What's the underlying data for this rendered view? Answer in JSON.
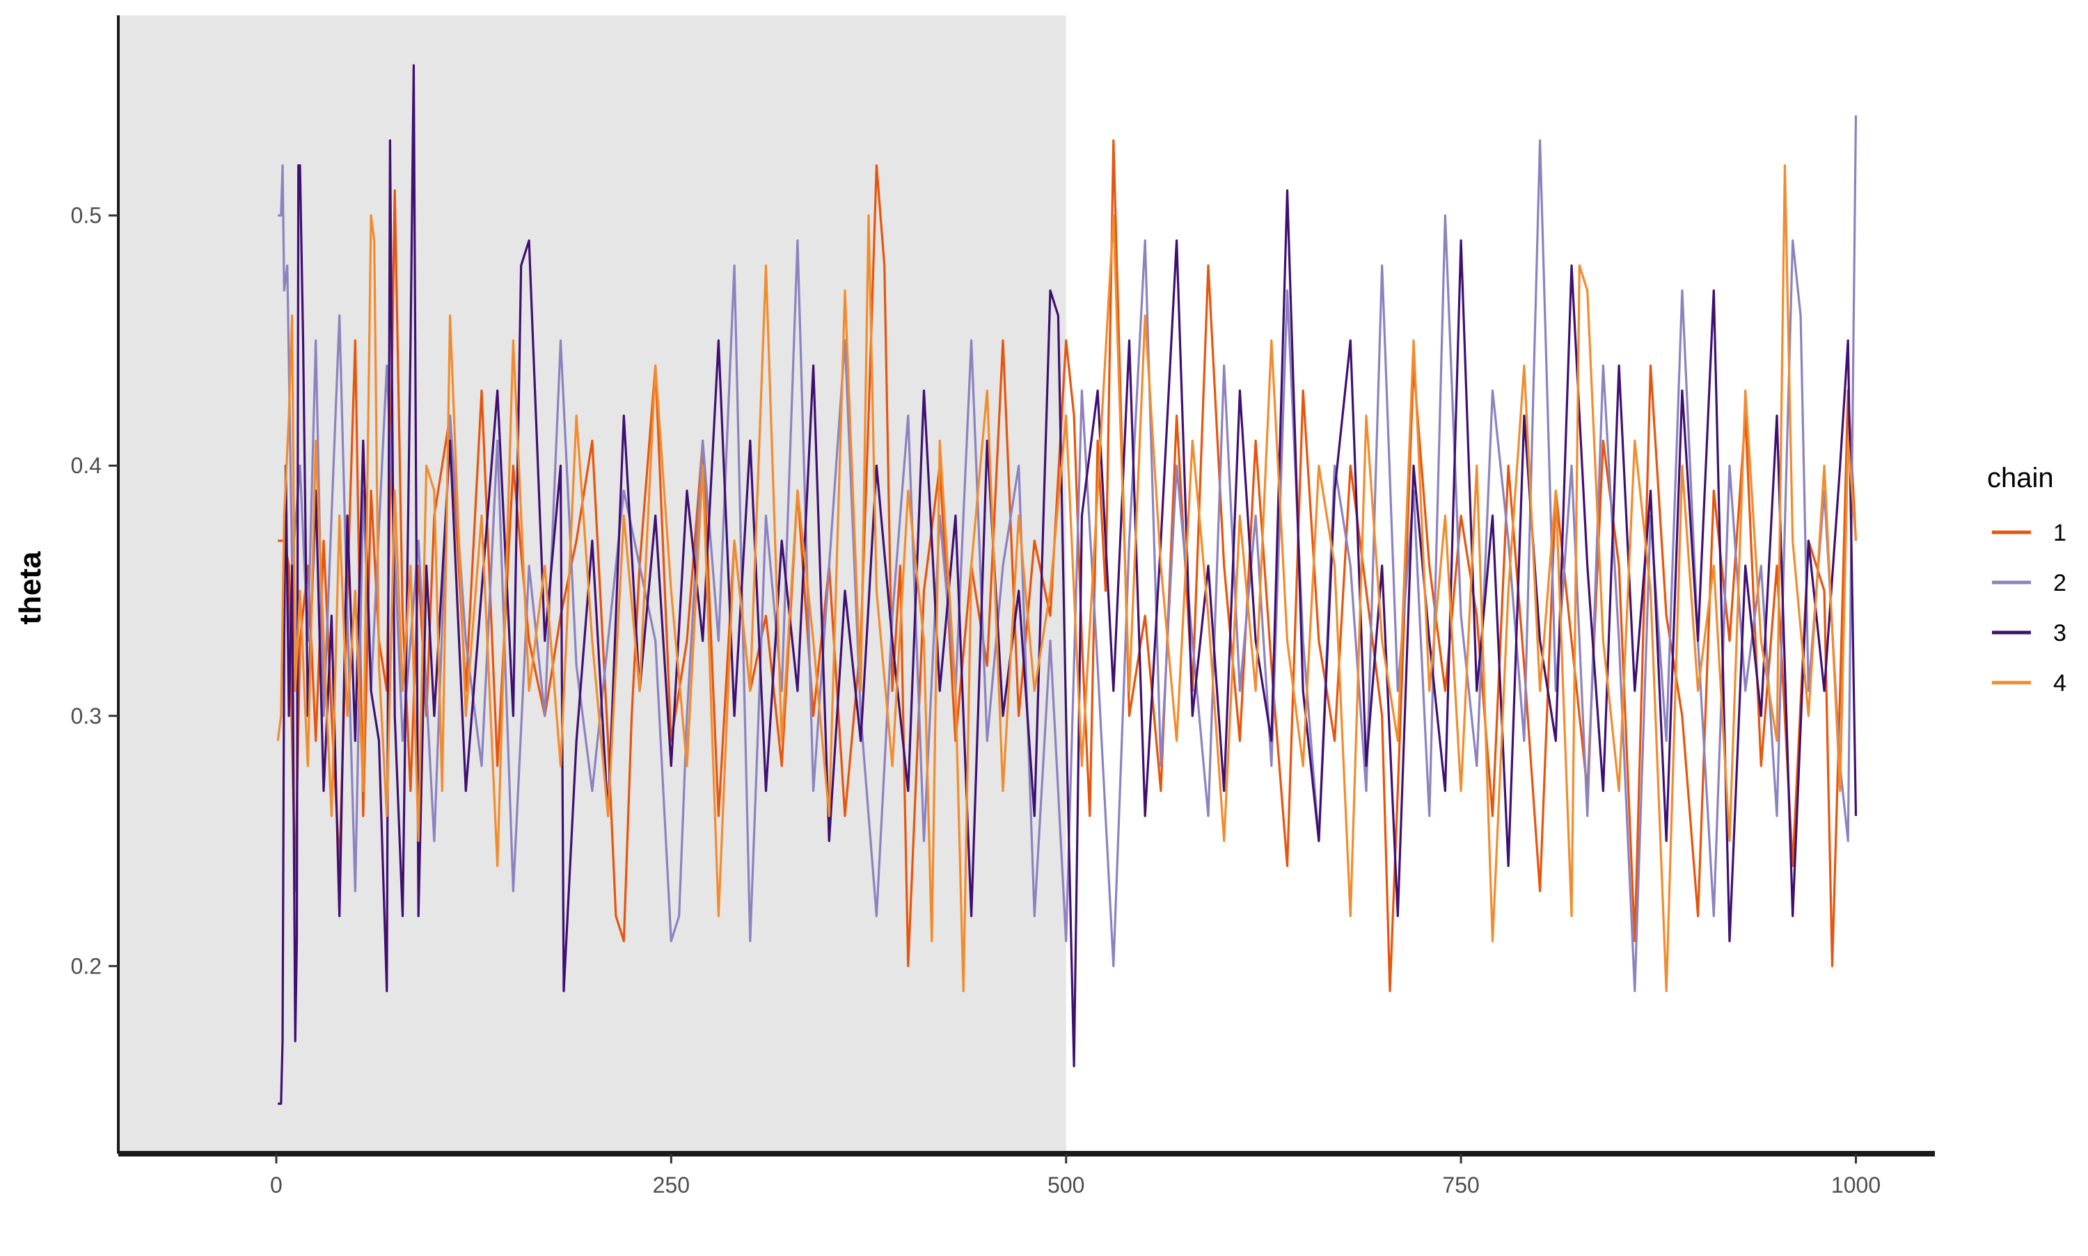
{
  "chart_data": {
    "type": "line",
    "title": "",
    "xlabel": "",
    "ylabel": "theta",
    "xlim": [
      -100,
      1050
    ],
    "ylim": [
      0.125,
      0.58
    ],
    "x_ticks": [
      0,
      250,
      500,
      750,
      1000
    ],
    "x_tick_labels": [
      "0",
      "250",
      "500",
      "750",
      "1000"
    ],
    "y_ticks": [
      0.2,
      0.3,
      0.4,
      0.5
    ],
    "y_tick_labels": [
      "0.2",
      "0.3",
      "0.4",
      "0.5"
    ],
    "warmup_region": {
      "x_start": -100,
      "x_end": 500,
      "fill": "#e6e6e6"
    },
    "grid": false,
    "legend": {
      "title": "chain",
      "position": "right"
    },
    "series": [
      {
        "name": "1",
        "color": "#e6550d",
        "x": [
          1,
          5,
          8,
          10,
          12,
          15,
          20,
          25,
          30,
          35,
          40,
          45,
          50,
          55,
          60,
          65,
          70,
          75,
          80,
          85,
          90,
          95,
          100,
          110,
          120,
          130,
          140,
          150,
          160,
          170,
          180,
          190,
          200,
          210,
          215,
          220,
          225,
          230,
          240,
          250,
          260,
          270,
          280,
          290,
          300,
          310,
          320,
          330,
          340,
          350,
          360,
          370,
          375,
          380,
          385,
          390,
          395,
          400,
          410,
          420,
          430,
          440,
          450,
          460,
          470,
          480,
          490,
          500,
          505,
          510,
          515,
          520,
          525,
          530,
          540,
          550,
          560,
          570,
          580,
          590,
          600,
          610,
          620,
          630,
          640,
          650,
          660,
          670,
          680,
          690,
          700,
          705,
          710,
          720,
          730,
          740,
          750,
          760,
          770,
          780,
          790,
          800,
          810,
          820,
          830,
          840,
          850,
          860,
          870,
          880,
          890,
          900,
          910,
          920,
          930,
          940,
          950,
          960,
          970,
          980,
          985,
          990,
          995,
          1000
        ],
        "values": [
          0.37,
          0.37,
          0.36,
          0.29,
          0.23,
          0.33,
          0.36,
          0.29,
          0.37,
          0.3,
          0.24,
          0.35,
          0.45,
          0.26,
          0.39,
          0.33,
          0.31,
          0.51,
          0.34,
          0.27,
          0.36,
          0.3,
          0.38,
          0.42,
          0.31,
          0.43,
          0.28,
          0.4,
          0.33,
          0.3,
          0.34,
          0.37,
          0.41,
          0.29,
          0.22,
          0.21,
          0.3,
          0.36,
          0.44,
          0.29,
          0.33,
          0.41,
          0.26,
          0.37,
          0.31,
          0.34,
          0.28,
          0.39,
          0.3,
          0.36,
          0.26,
          0.33,
          0.42,
          0.52,
          0.48,
          0.31,
          0.36,
          0.2,
          0.35,
          0.4,
          0.29,
          0.36,
          0.32,
          0.45,
          0.3,
          0.37,
          0.34,
          0.45,
          0.42,
          0.33,
          0.26,
          0.41,
          0.35,
          0.53,
          0.3,
          0.34,
          0.27,
          0.42,
          0.31,
          0.48,
          0.36,
          0.29,
          0.41,
          0.32,
          0.24,
          0.43,
          0.33,
          0.29,
          0.4,
          0.35,
          0.3,
          0.19,
          0.27,
          0.44,
          0.36,
          0.31,
          0.38,
          0.34,
          0.26,
          0.4,
          0.32,
          0.23,
          0.39,
          0.33,
          0.27,
          0.41,
          0.36,
          0.21,
          0.44,
          0.34,
          0.3,
          0.22,
          0.39,
          0.33,
          0.42,
          0.28,
          0.36,
          0.24,
          0.37,
          0.35,
          0.2,
          0.31,
          0.43,
          0.37
        ]
      },
      {
        "name": "2",
        "color": "#8c82c0",
        "x": [
          1,
          3,
          4,
          5,
          7,
          10,
          15,
          20,
          25,
          30,
          35,
          40,
          45,
          50,
          55,
          60,
          70,
          80,
          90,
          100,
          110,
          120,
          130,
          140,
          150,
          160,
          170,
          180,
          190,
          200,
          220,
          240,
          250,
          255,
          260,
          270,
          280,
          290,
          300,
          310,
          320,
          330,
          340,
          350,
          360,
          370,
          380,
          390,
          400,
          410,
          420,
          430,
          440,
          450,
          460,
          470,
          480,
          490,
          500,
          510,
          520,
          530,
          540,
          550,
          560,
          570,
          580,
          590,
          600,
          610,
          620,
          630,
          640,
          650,
          660,
          670,
          680,
          690,
          700,
          710,
          720,
          730,
          740,
          750,
          760,
          770,
          780,
          790,
          800,
          810,
          820,
          830,
          840,
          850,
          860,
          870,
          880,
          890,
          900,
          910,
          920,
          930,
          940,
          950,
          960,
          965,
          970,
          980,
          990,
          995,
          1000
        ],
        "values": [
          0.5,
          0.5,
          0.52,
          0.47,
          0.48,
          0.36,
          0.4,
          0.33,
          0.45,
          0.3,
          0.38,
          0.46,
          0.34,
          0.23,
          0.39,
          0.31,
          0.44,
          0.29,
          0.37,
          0.25,
          0.42,
          0.33,
          0.28,
          0.41,
          0.23,
          0.36,
          0.3,
          0.45,
          0.32,
          0.27,
          0.39,
          0.33,
          0.21,
          0.22,
          0.3,
          0.41,
          0.33,
          0.48,
          0.21,
          0.38,
          0.31,
          0.49,
          0.27,
          0.36,
          0.45,
          0.3,
          0.22,
          0.34,
          0.42,
          0.25,
          0.38,
          0.31,
          0.45,
          0.29,
          0.36,
          0.4,
          0.22,
          0.33,
          0.21,
          0.43,
          0.32,
          0.2,
          0.37,
          0.49,
          0.28,
          0.4,
          0.33,
          0.26,
          0.44,
          0.31,
          0.38,
          0.28,
          0.47,
          0.33,
          0.25,
          0.4,
          0.36,
          0.27,
          0.48,
          0.31,
          0.39,
          0.26,
          0.5,
          0.34,
          0.28,
          0.43,
          0.37,
          0.29,
          0.53,
          0.31,
          0.4,
          0.26,
          0.44,
          0.33,
          0.19,
          0.38,
          0.29,
          0.47,
          0.33,
          0.22,
          0.4,
          0.31,
          0.36,
          0.26,
          0.49,
          0.46,
          0.31,
          0.39,
          0.28,
          0.25,
          0.54
        ]
      },
      {
        "name": "3",
        "color": "#3f0f72",
        "x": [
          1,
          3,
          4,
          5,
          6,
          8,
          10,
          12,
          13,
          14,
          15,
          17,
          20,
          25,
          30,
          35,
          40,
          45,
          50,
          55,
          60,
          65,
          70,
          72,
          75,
          80,
          85,
          87,
          90,
          95,
          100,
          110,
          120,
          130,
          140,
          150,
          155,
          160,
          170,
          180,
          182,
          190,
          200,
          210,
          220,
          230,
          240,
          250,
          260,
          270,
          280,
          290,
          300,
          310,
          320,
          330,
          340,
          350,
          360,
          370,
          380,
          390,
          400,
          410,
          420,
          430,
          440,
          450,
          460,
          470,
          480,
          490,
          495,
          500,
          505,
          510,
          520,
          530,
          540,
          550,
          560,
          570,
          580,
          590,
          600,
          610,
          620,
          630,
          640,
          650,
          660,
          670,
          680,
          690,
          700,
          710,
          720,
          730,
          740,
          750,
          760,
          770,
          780,
          790,
          800,
          810,
          820,
          830,
          840,
          850,
          860,
          870,
          880,
          890,
          900,
          910,
          920,
          930,
          940,
          950,
          960,
          970,
          980,
          990,
          995,
          1000
        ],
        "values": [
          0.145,
          0.145,
          0.17,
          0.33,
          0.4,
          0.3,
          0.36,
          0.17,
          0.21,
          0.52,
          0.52,
          0.45,
          0.3,
          0.39,
          0.27,
          0.34,
          0.22,
          0.38,
          0.29,
          0.41,
          0.31,
          0.29,
          0.19,
          0.53,
          0.3,
          0.22,
          0.45,
          0.56,
          0.22,
          0.36,
          0.3,
          0.41,
          0.27,
          0.35,
          0.43,
          0.3,
          0.48,
          0.49,
          0.33,
          0.4,
          0.19,
          0.29,
          0.37,
          0.26,
          0.42,
          0.31,
          0.38,
          0.28,
          0.39,
          0.33,
          0.45,
          0.3,
          0.41,
          0.27,
          0.37,
          0.31,
          0.44,
          0.25,
          0.35,
          0.29,
          0.4,
          0.33,
          0.27,
          0.43,
          0.31,
          0.38,
          0.22,
          0.41,
          0.3,
          0.35,
          0.26,
          0.47,
          0.46,
          0.3,
          0.16,
          0.38,
          0.43,
          0.31,
          0.45,
          0.26,
          0.37,
          0.49,
          0.3,
          0.36,
          0.27,
          0.43,
          0.33,
          0.29,
          0.51,
          0.31,
          0.25,
          0.39,
          0.45,
          0.28,
          0.36,
          0.22,
          0.4,
          0.33,
          0.27,
          0.49,
          0.31,
          0.38,
          0.24,
          0.42,
          0.33,
          0.29,
          0.48,
          0.36,
          0.27,
          0.44,
          0.31,
          0.39,
          0.25,
          0.43,
          0.33,
          0.47,
          0.21,
          0.36,
          0.3,
          0.42,
          0.22,
          0.37,
          0.31,
          0.4,
          0.45,
          0.26
        ]
      },
      {
        "name": "4",
        "color": "#f18c2e",
        "x": [
          1,
          3,
          5,
          8,
          10,
          12,
          15,
          20,
          25,
          30,
          35,
          40,
          45,
          50,
          55,
          60,
          62,
          65,
          70,
          75,
          80,
          85,
          90,
          95,
          100,
          105,
          110,
          120,
          130,
          140,
          150,
          160,
          170,
          180,
          190,
          200,
          210,
          220,
          230,
          240,
          250,
          260,
          270,
          280,
          290,
          300,
          310,
          320,
          330,
          340,
          350,
          360,
          370,
          375,
          380,
          390,
          400,
          410,
          415,
          420,
          430,
          435,
          440,
          450,
          460,
          470,
          480,
          490,
          500,
          510,
          520,
          530,
          540,
          550,
          560,
          570,
          580,
          590,
          600,
          610,
          620,
          630,
          640,
          650,
          660,
          670,
          680,
          690,
          700,
          710,
          720,
          730,
          740,
          750,
          760,
          770,
          780,
          790,
          800,
          810,
          820,
          825,
          830,
          840,
          850,
          860,
          870,
          880,
          890,
          900,
          910,
          920,
          930,
          940,
          950,
          955,
          960,
          970,
          980,
          990,
          995,
          1000
        ],
        "values": [
          0.29,
          0.3,
          0.38,
          0.42,
          0.46,
          0.31,
          0.35,
          0.28,
          0.41,
          0.33,
          0.26,
          0.38,
          0.3,
          0.35,
          0.27,
          0.5,
          0.49,
          0.32,
          0.26,
          0.39,
          0.31,
          0.36,
          0.25,
          0.4,
          0.39,
          0.27,
          0.46,
          0.3,
          0.38,
          0.24,
          0.45,
          0.31,
          0.36,
          0.28,
          0.42,
          0.33,
          0.26,
          0.38,
          0.31,
          0.44,
          0.35,
          0.28,
          0.4,
          0.22,
          0.37,
          0.31,
          0.48,
          0.29,
          0.39,
          0.33,
          0.26,
          0.47,
          0.31,
          0.5,
          0.35,
          0.28,
          0.39,
          0.33,
          0.21,
          0.41,
          0.31,
          0.19,
          0.36,
          0.43,
          0.27,
          0.38,
          0.31,
          0.35,
          0.42,
          0.28,
          0.39,
          0.5,
          0.31,
          0.46,
          0.36,
          0.29,
          0.41,
          0.34,
          0.25,
          0.38,
          0.31,
          0.45,
          0.33,
          0.28,
          0.4,
          0.36,
          0.22,
          0.42,
          0.33,
          0.29,
          0.45,
          0.31,
          0.38,
          0.27,
          0.4,
          0.21,
          0.35,
          0.44,
          0.31,
          0.39,
          0.22,
          0.48,
          0.47,
          0.33,
          0.27,
          0.41,
          0.35,
          0.19,
          0.4,
          0.31,
          0.36,
          0.25,
          0.43,
          0.33,
          0.29,
          0.52,
          0.37,
          0.3,
          0.4,
          0.27,
          0.41,
          0.37
        ]
      }
    ]
  }
}
